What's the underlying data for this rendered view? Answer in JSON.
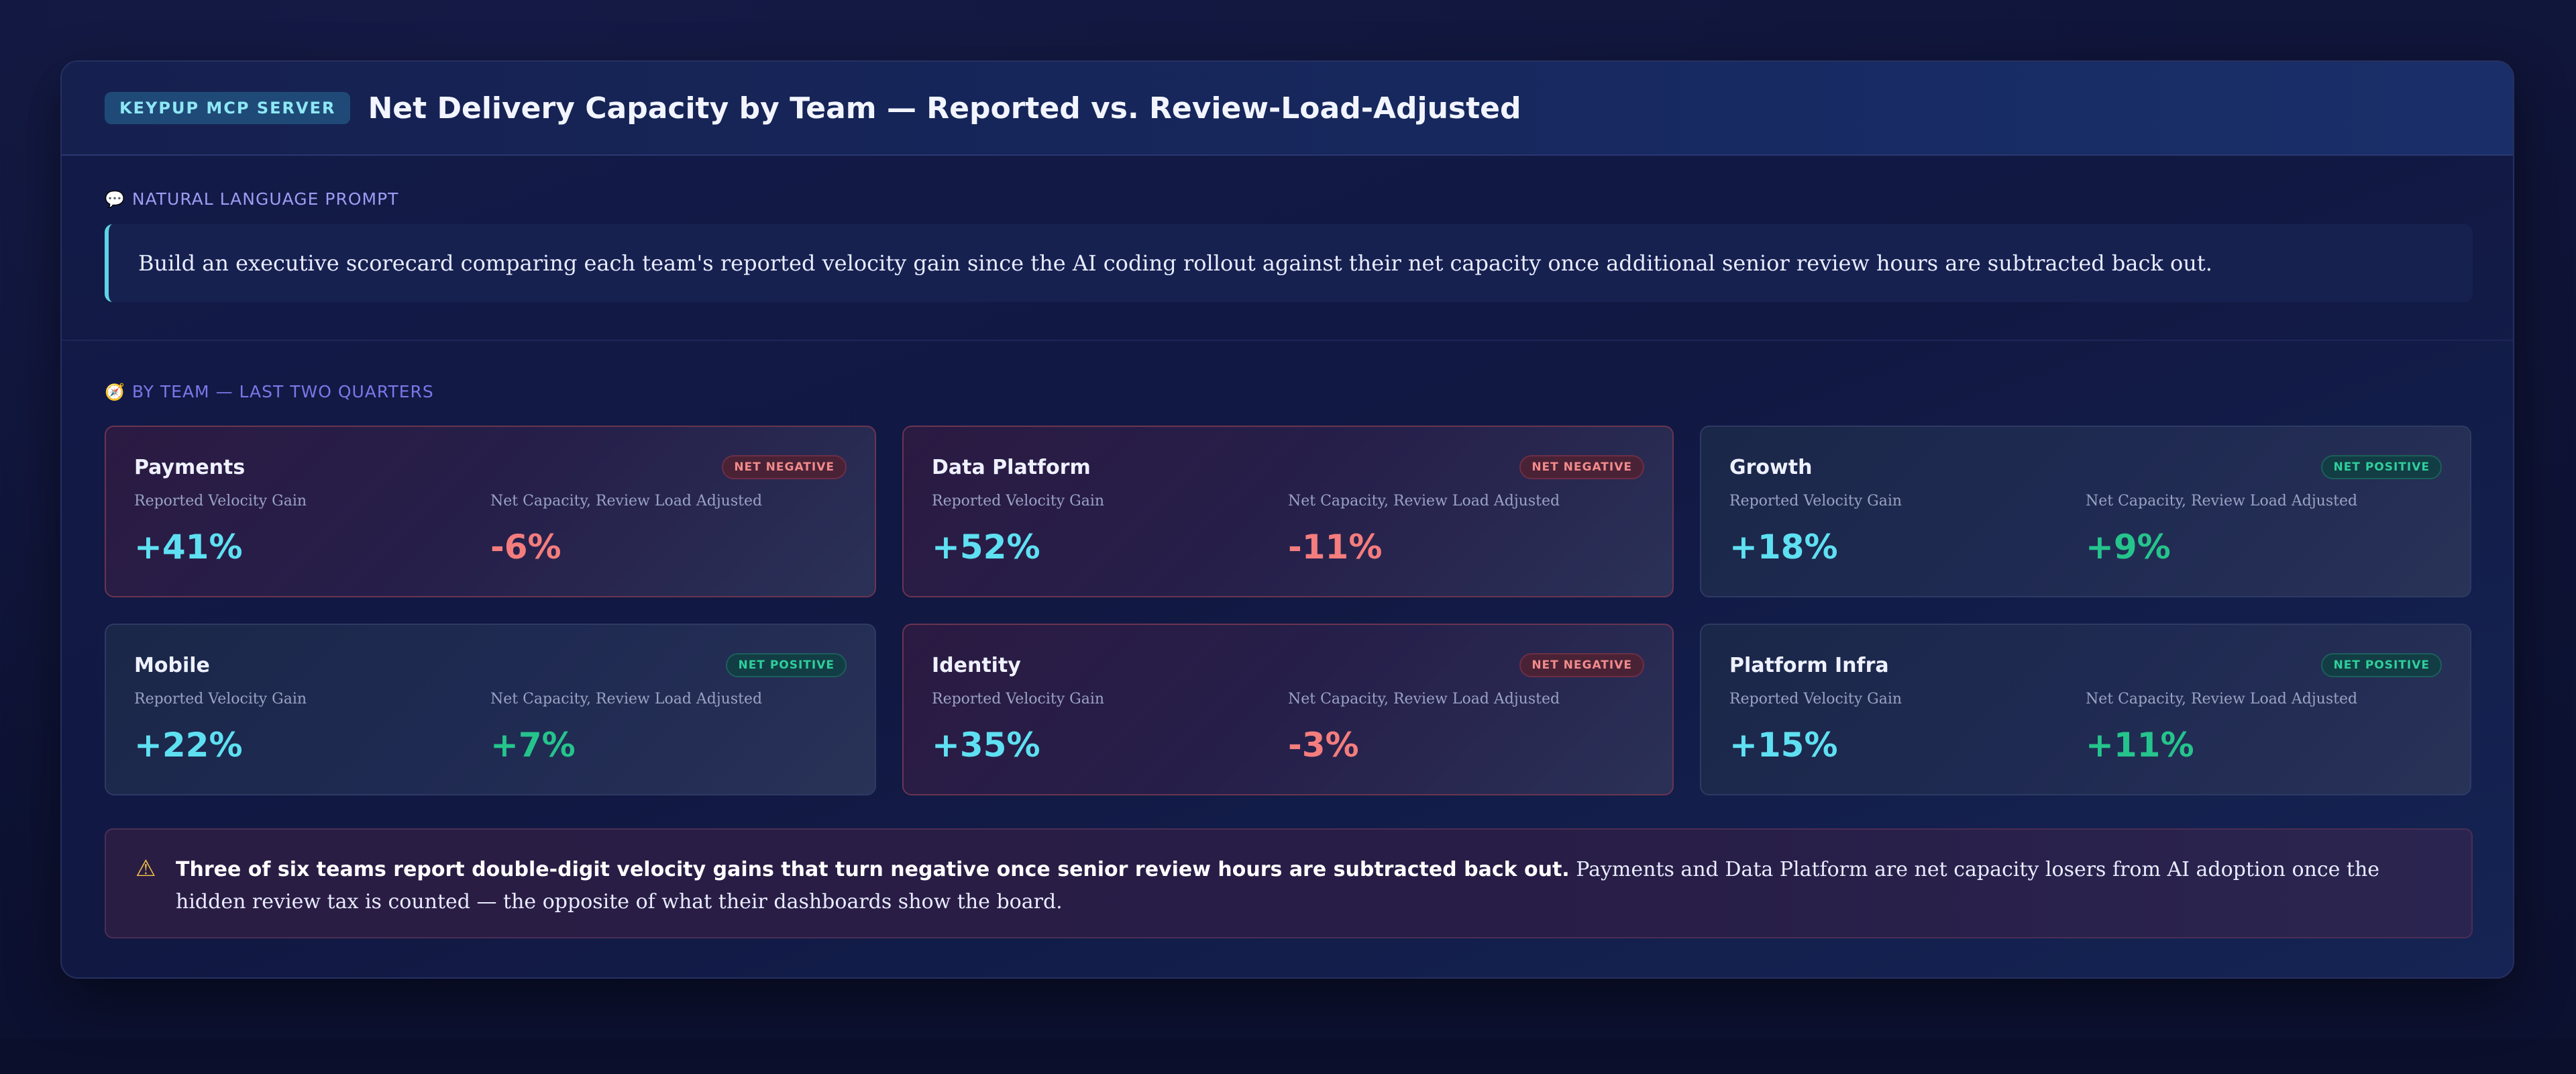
{
  "header": {
    "badge": "KEYPUP MCP SERVER",
    "title": "Net Delivery Capacity by Team — Reported vs. Review-Load-Adjusted"
  },
  "prompt": {
    "label_icon": "speech-bubble-icon",
    "label": "NATURAL LANGUAGE PROMPT",
    "text": "Build an executive scorecard comparing each team's reported velocity gain since the AI coding rollout against their net capacity once additional senior review hours are subtracted back out."
  },
  "section": {
    "label_icon": "compass-icon",
    "label": "BY TEAM — LAST TWO QUARTERS"
  },
  "metric_labels": {
    "reported": "Reported Velocity Gain",
    "net": "Net Capacity, Review Load Adjusted"
  },
  "teams": [
    {
      "name": "Payments",
      "status": "NET NEGATIVE",
      "reported": "+41%",
      "net": "-6%"
    },
    {
      "name": "Data Platform",
      "status": "NET NEGATIVE",
      "reported": "+52%",
      "net": "-11%"
    },
    {
      "name": "Growth",
      "status": "NET POSITIVE",
      "reported": "+18%",
      "net": "+9%"
    },
    {
      "name": "Mobile",
      "status": "NET POSITIVE",
      "reported": "+22%",
      "net": "+7%"
    },
    {
      "name": "Identity",
      "status": "NET NEGATIVE",
      "reported": "+35%",
      "net": "-3%"
    },
    {
      "name": "Platform Infra",
      "status": "NET POSITIVE",
      "reported": "+15%",
      "net": "+11%"
    }
  ],
  "alert": {
    "icon": "warning-icon",
    "strong": "Three of six teams report double-digit velocity gains that turn negative once senior review hours are subtracted back out.",
    "text": " Payments and Data Platform are net capacity losers from AI adoption once the hidden review tax is counted — the opposite of what their dashboards show the board."
  },
  "colors": {
    "reported": "#5ee0f2",
    "net_negative": "#f47d7d",
    "net_positive": "#25c48c",
    "accent": "#5fd3e6"
  }
}
